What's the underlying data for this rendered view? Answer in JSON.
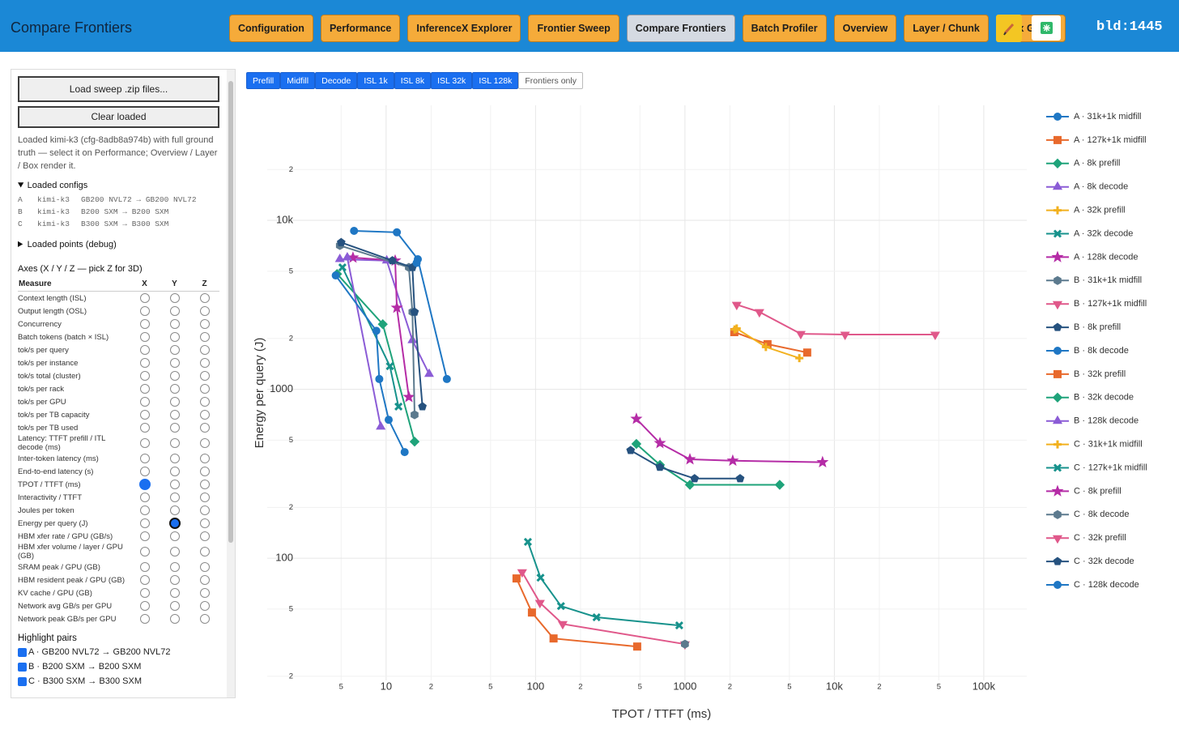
{
  "header": {
    "title": "Compare Frontiers",
    "nav": [
      "Configuration",
      "Performance",
      "InferenceX Explorer",
      "Frontier Sweep",
      "Compare Frontiers",
      "Batch Profiler",
      "Overview",
      "Layer / Chunk",
      "Box Graph"
    ],
    "active": 4,
    "build": "bld:1445"
  },
  "sidebar": {
    "load_button": "Load sweep .zip files...",
    "clear_button": "Clear loaded",
    "note": "Loaded kimi-k3 (cfg-8adb8a974b) with full ground truth — select it on Performance; Overview / Layer / Box render it.",
    "configs_title": "Loaded configs",
    "configs": [
      [
        "A",
        "kimi-k3",
        "GB200 NVL72 → GB200 NVL72"
      ],
      [
        "B",
        "kimi-k3",
        "B200 SXM → B200 SXM"
      ],
      [
        "C",
        "kimi-k3",
        "B300 SXM → B300 SXM"
      ]
    ],
    "points_title": "Loaded points (debug)",
    "axes_title": "Axes (X / Y / Z — pick Z for 3D)",
    "axes_header": [
      "Measure",
      "X",
      "Y",
      "Z"
    ],
    "measures": [
      "Context length (ISL)",
      "Output length (OSL)",
      "Concurrency",
      "Batch tokens (batch × ISL)",
      "tok/s per query",
      "tok/s per instance",
      "tok/s total (cluster)",
      "tok/s per rack",
      "tok/s per GPU",
      "tok/s per TB capacity",
      "tok/s per TB used",
      "Latency: TTFT prefill / ITL decode (ms)",
      "Inter-token latency (ms)",
      "End-to-end latency (s)",
      "TPOT / TTFT (ms)",
      "Interactivity / TTFT",
      "Joules per token",
      "Energy per query (J)",
      "HBM xfer rate / GPU (GB/s)",
      "HBM xfer volume / layer / GPU (GB)",
      "SRAM peak / GPU (GB)",
      "HBM resident peak / GPU (GB)",
      "KV cache / GPU (GB)",
      "Network avg GB/s per GPU",
      "Network peak GB/s per GPU"
    ],
    "selected": {
      "x": 14,
      "y": 17
    },
    "highlight_title": "Highlight pairs",
    "pairs": [
      "A · GB200 NVL72 → GB200 NVL72",
      "B · B200 SXM → B200 SXM",
      "C · B300 SXM → B300 SXM"
    ]
  },
  "filters": {
    "buttons": [
      "Prefill",
      "Midfill",
      "Decode",
      "ISL 1k",
      "ISL 8k",
      "ISL 32k",
      "ISL 128k",
      "Frontiers only"
    ],
    "active": [
      0,
      1,
      2,
      3,
      4,
      5,
      6
    ]
  },
  "chart_data": {
    "type": "line",
    "x_label": "TPOT / TTFT (ms)",
    "y_label": "Energy per query (J)",
    "log_x": true,
    "log_y": true,
    "grid": true,
    "legend": "right",
    "xlim": [
      1.6,
      194000
    ],
    "ylim": [
      18.9,
      48000
    ],
    "xticks": [
      5,
      10,
      {
        "value": 20,
        "label": "2"
      },
      {
        "value": 50,
        "label": "5"
      },
      100,
      {
        "value": 200,
        "label": "2"
      },
      {
        "value": 500,
        "label": "5"
      },
      1000,
      {
        "value": 2000,
        "label": "2"
      },
      {
        "value": 5000,
        "label": "5"
      },
      {
        "value": 10000,
        "label": "10k"
      },
      {
        "value": 20000,
        "label": "2"
      },
      {
        "value": 50000,
        "label": "5"
      },
      {
        "value": 100000,
        "label": "100k"
      }
    ],
    "yticks": [
      {
        "value": 20,
        "label": "2"
      },
      {
        "value": 50,
        "label": "5"
      },
      100,
      {
        "value": 200,
        "label": "2"
      },
      {
        "value": 500,
        "label": "5"
      },
      1000,
      {
        "value": 2000,
        "label": "2"
      },
      {
        "value": 5000,
        "label": "5"
      },
      {
        "value": 10000,
        "label": "10k"
      },
      {
        "value": 20000,
        "label": "2"
      }
    ],
    "series": [
      {
        "name": "A · 31k+1k midfill",
        "color": "#1f77c4",
        "marker": "circle",
        "x": [
          6.1,
          11.8,
          16.3,
          25.5
        ],
        "values": [
          8670,
          8500,
          5890,
          1150
        ]
      },
      {
        "name": "A · 127k+1k midfill",
        "color": "#e8692c",
        "marker": "square",
        "x": [
          2140,
          3570,
          6580
        ],
        "values": [
          2180,
          1850,
          1650
        ]
      },
      {
        "name": "A · 8k prefill",
        "color": "#1fa37a",
        "marker": "diamond",
        "x": [
          4.7,
          9.5,
          15.5
        ],
        "values": [
          4820,
          2430,
          490
        ]
      },
      {
        "name": "A · 8k decode",
        "color": "#8b5cd6",
        "marker": "triangle-up",
        "x": [
          4.9,
          10.1,
          15,
          19.4
        ],
        "values": [
          5890,
          5780,
          1950,
          1230
        ]
      },
      {
        "name": "A · 32k prefill",
        "color": "#f2b11f",
        "marker": "cross",
        "x": [
          2220,
          3480,
          5830
        ],
        "values": [
          2290,
          1780,
          1530
        ]
      },
      {
        "name": "A · 32k decode",
        "color": "#17928c",
        "marker": "x",
        "x": [
          5.1,
          10.6,
          12.1
        ],
        "values": [
          5270,
          1370,
          790
        ]
      },
      {
        "name": "A · 128k decode",
        "color": "#b52ca6",
        "marker": "star",
        "x": [
          6,
          11.5,
          11.8,
          14.2
        ],
        "values": [
          6020,
          5780,
          3040,
          900
        ]
      },
      {
        "name": "B · 31k+1k midfill",
        "color": "#5c7a8e",
        "marker": "hexagon",
        "x": [
          4.9,
          14.2,
          15,
          15.5
        ],
        "values": [
          7100,
          5270,
          2870,
          706
        ]
      },
      {
        "name": "B · 127k+1k midfill",
        "color": "#e0588a",
        "marker": "triangle-down",
        "x": [
          81.3,
          107,
          152,
          1000
        ],
        "values": [
          82.8,
          54.5,
          40.8,
          31
        ]
      },
      {
        "name": "B · 8k prefill",
        "color": "#26527f",
        "marker": "pentagon",
        "x": [
          5,
          11,
          15,
          15.5,
          17.5
        ],
        "values": [
          7400,
          5780,
          5270,
          2870,
          790
        ]
      },
      {
        "name": "B · 8k decode",
        "color": "#1f77c4",
        "marker": "circle",
        "x": [
          16
        ],
        "values": [
          5600
        ]
      },
      {
        "name": "B · 32k prefill",
        "color": "#e8692c",
        "marker": "square",
        "x": [
          74.6,
          94.6,
          132,
          479
        ],
        "values": [
          75.9,
          47.7,
          33.5,
          30
        ]
      },
      {
        "name": "B · 32k decode",
        "color": "#1fa37a",
        "marker": "diamond",
        "x": [
          473,
          680,
          1080,
          4310
        ],
        "values": [
          475,
          357,
          272,
          272
        ]
      },
      {
        "name": "B · 128k decode",
        "color": "#8b5cd6",
        "marker": "triangle-up",
        "x": [
          5.5,
          9.2
        ],
        "values": [
          6020,
          600
        ]
      },
      {
        "name": "C · 31k+1k midfill",
        "color": "#f2b11f",
        "marker": "cross",
        "x": [
          2150
        ],
        "values": [
          2260
        ]
      },
      {
        "name": "C · 127k+1k midfill",
        "color": "#17928c",
        "marker": "x",
        "x": [
          88.9,
          108,
          148,
          256,
          916
        ],
        "values": [
          125,
          76.7,
          52.1,
          44.7,
          40
        ]
      },
      {
        "name": "C · 8k prefill",
        "color": "#b52ca6",
        "marker": "star",
        "x": [
          473,
          680,
          1080,
          2090,
          8340
        ],
        "values": [
          668,
          480,
          385,
          378,
          370
        ]
      },
      {
        "name": "C · 8k decode",
        "color": "#5c7a8e",
        "marker": "hexagon",
        "x": [
          1000
        ],
        "values": [
          31
        ]
      },
      {
        "name": "C · 32k prefill",
        "color": "#e0588a",
        "marker": "triangle-down",
        "x": [
          2220,
          3150,
          5960,
          11800,
          47300
        ],
        "values": [
          3170,
          2870,
          2130,
          2110,
          2110
        ]
      },
      {
        "name": "C · 32k decode",
        "color": "#26527f",
        "marker": "pentagon",
        "x": [
          433,
          680,
          1160,
          2340
        ],
        "values": [
          435,
          346,
          296,
          296
        ]
      },
      {
        "name": "C · 128k decode",
        "color": "#1f77c4",
        "marker": "circle",
        "x": [
          4.6,
          8.6,
          9,
          10.4,
          13.3
        ],
        "values": [
          4720,
          2220,
          1150,
          660,
          425
        ]
      }
    ]
  }
}
